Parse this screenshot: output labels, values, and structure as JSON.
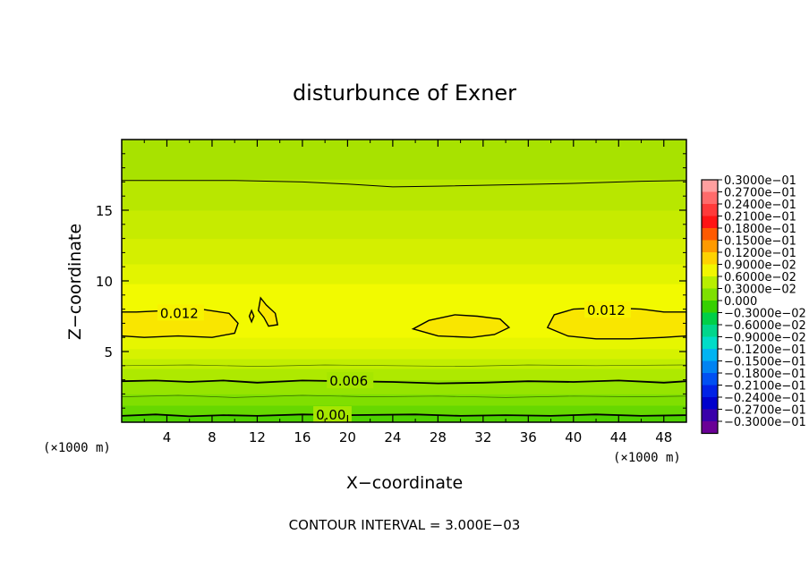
{
  "chart_data": {
    "type": "heatmap",
    "title": "disturbunce of Exner",
    "xlabel": "X−coordinate",
    "ylabel": "Z−coordinate",
    "x_unit": "(×1000 m)",
    "y_unit": "(×1000 m)",
    "xlim": [
      0,
      50
    ],
    "ylim": [
      0,
      20
    ],
    "x_ticks": [
      4,
      8,
      12,
      16,
      20,
      24,
      28,
      32,
      36,
      40,
      44,
      48
    ],
    "y_ticks": [
      5,
      10,
      15
    ],
    "footer": "CONTOUR INTERVAL = 3.000E−03",
    "contour_labels": [
      {
        "text": "0.012",
        "x": 3.4,
        "z": 7.7
      },
      {
        "text": "0.012",
        "x": 41.2,
        "z": 7.9
      },
      {
        "text": "0.006",
        "x": 18.4,
        "z": 2.9
      },
      {
        "text": "0.00",
        "x": 17.2,
        "z": 0.5
      }
    ],
    "colorbar": {
      "labels": [
        "0.3000e−01",
        "0.2700e−01",
        "0.2400e−01",
        "0.2100e−01",
        "0.1800e−01",
        "0.1500e−01",
        "0.1200e−01",
        "0.9000e−02",
        "0.6000e−02",
        "0.3000e−02",
        "0.000",
        "−0.3000e−02",
        "−0.6000e−02",
        "−0.9000e−02",
        "−0.1200e−01",
        "−0.1500e−01",
        "−0.1800e−01",
        "−0.2100e−01",
        "−0.2400e−01",
        "−0.2700e−01",
        "−0.3000e−01"
      ],
      "colors": [
        "#ff9f9f",
        "#ff6b6b",
        "#ff3a3a",
        "#ff1414",
        "#ff5a00",
        "#ff9a00",
        "#ffd200",
        "#f2f600",
        "#b8ee00",
        "#7ee000",
        "#36d000",
        "#00cf48",
        "#00d68c",
        "#00dcc8",
        "#00b4f2",
        "#0083f2",
        "#0050f2",
        "#0022e6",
        "#0000cc",
        "#3a00aa",
        "#6a0096"
      ]
    },
    "field_bands": [
      {
        "z0": 0.0,
        "z1": 0.5,
        "value": 0.0,
        "color": "#4cd200"
      },
      {
        "z0": 0.5,
        "z1": 1.2,
        "value": 0.002,
        "color": "#66d800"
      },
      {
        "z0": 1.2,
        "z1": 2.0,
        "value": 0.004,
        "color": "#80df00"
      },
      {
        "z0": 2.0,
        "z1": 3.0,
        "value": 0.005,
        "color": "#96e400"
      },
      {
        "z0": 3.0,
        "z1": 3.8,
        "value": 0.007,
        "color": "#aee900"
      },
      {
        "z0": 3.8,
        "z1": 4.5,
        "value": 0.008,
        "color": "#c2ee00"
      },
      {
        "z0": 4.5,
        "z1": 5.2,
        "value": 0.009,
        "color": "#d6f200"
      },
      {
        "z0": 5.2,
        "z1": 6.0,
        "value": 0.01,
        "color": "#e6f600"
      },
      {
        "z0": 6.0,
        "z1": 9.8,
        "value": 0.011,
        "color": "#f2fa00"
      },
      {
        "z0": 9.8,
        "z1": 11.2,
        "value": 0.01,
        "color": "#e2f400"
      },
      {
        "z0": 11.2,
        "z1": 13.0,
        "value": 0.009,
        "color": "#d4ef00"
      },
      {
        "z0": 13.0,
        "z1": 15.0,
        "value": 0.008,
        "color": "#c6eb00"
      },
      {
        "z0": 15.0,
        "z1": 17.2,
        "value": 0.007,
        "color": "#b8e700"
      },
      {
        "z0": 17.2,
        "z1": 20.0,
        "value": 0.006,
        "color": "#a8e200"
      }
    ],
    "max_regions": [
      {
        "points": [
          [
            0,
            6.1
          ],
          [
            2,
            6.0
          ],
          [
            5,
            6.1
          ],
          [
            8,
            6.0
          ],
          [
            10,
            6.3
          ],
          [
            10.3,
            7.0
          ],
          [
            9.5,
            7.7
          ],
          [
            7,
            8.0
          ],
          [
            4,
            7.9
          ],
          [
            1.3,
            7.8
          ],
          [
            0,
            7.8
          ]
        ],
        "color": "#f9e600",
        "value": 0.012
      },
      {
        "points": [
          [
            25.8,
            6.6
          ],
          [
            28,
            6.1
          ],
          [
            31,
            6.0
          ],
          [
            33,
            6.2
          ],
          [
            34.3,
            6.7
          ],
          [
            33.5,
            7.3
          ],
          [
            31.5,
            7.5
          ],
          [
            29.5,
            7.6
          ],
          [
            27.2,
            7.2
          ]
        ],
        "color": "#f9e600",
        "value": 0.012
      },
      {
        "points": [
          [
            50,
            6.1
          ],
          [
            48,
            6.0
          ],
          [
            45,
            5.9
          ],
          [
            42,
            5.9
          ],
          [
            39.5,
            6.1
          ],
          [
            37.7,
            6.7
          ],
          [
            38.3,
            7.6
          ],
          [
            40,
            8.0
          ],
          [
            43,
            8.1
          ],
          [
            46,
            8.0
          ],
          [
            48,
            7.8
          ],
          [
            50,
            7.8
          ]
        ],
        "color": "#f9e600",
        "value": 0.012
      },
      {
        "points": [
          [
            12.1,
            7.9
          ],
          [
            12.3,
            8.8
          ],
          [
            12.8,
            8.3
          ],
          [
            13.6,
            7.7
          ],
          [
            13.8,
            6.9
          ],
          [
            13.0,
            6.8
          ],
          [
            12.6,
            7.4
          ]
        ],
        "color": "#f9e600",
        "value": 0.012
      },
      {
        "points": [
          [
            11.3,
            7.5
          ],
          [
            11.5,
            7.9
          ],
          [
            11.7,
            7.5
          ],
          [
            11.5,
            7.1
          ]
        ],
        "color": "#f9e600",
        "value": 0.012
      }
    ],
    "contour_lines": [
      {
        "value": 0.0,
        "points": [
          [
            0,
            0.45
          ],
          [
            3,
            0.55
          ],
          [
            6,
            0.42
          ],
          [
            9,
            0.5
          ],
          [
            12,
            0.45
          ],
          [
            16,
            0.55
          ],
          [
            20,
            0.5
          ],
          [
            26,
            0.55
          ],
          [
            30,
            0.45
          ],
          [
            34,
            0.5
          ],
          [
            38,
            0.45
          ],
          [
            42,
            0.55
          ],
          [
            46,
            0.45
          ],
          [
            50,
            0.5
          ]
        ]
      },
      {
        "value": 0.006,
        "points": [
          [
            0,
            2.9
          ],
          [
            3,
            2.95
          ],
          [
            6,
            2.85
          ],
          [
            9,
            2.95
          ],
          [
            12,
            2.8
          ],
          [
            16,
            2.95
          ],
          [
            20,
            2.9
          ],
          [
            24,
            2.85
          ],
          [
            28,
            2.75
          ],
          [
            32,
            2.8
          ],
          [
            36,
            2.9
          ],
          [
            40,
            2.85
          ],
          [
            44,
            2.95
          ],
          [
            48,
            2.8
          ],
          [
            50,
            2.9
          ]
        ]
      },
      {
        "value": 0.009,
        "points": [
          [
            0,
            17.1
          ],
          [
            10,
            17.1
          ],
          [
            16,
            17.0
          ],
          [
            20,
            16.85
          ],
          [
            24,
            16.65
          ],
          [
            28,
            16.7
          ],
          [
            34,
            16.8
          ],
          [
            40,
            16.9
          ],
          [
            46,
            17.05
          ],
          [
            50,
            17.1
          ]
        ]
      }
    ],
    "thin_lines": [
      {
        "points": [
          [
            0,
            1.8
          ],
          [
            5,
            1.9
          ],
          [
            10,
            1.75
          ],
          [
            16,
            1.9
          ],
          [
            22,
            1.8
          ],
          [
            28,
            1.85
          ],
          [
            34,
            1.75
          ],
          [
            40,
            1.85
          ],
          [
            46,
            1.8
          ],
          [
            50,
            1.85
          ]
        ]
      },
      {
        "points": [
          [
            0,
            4.0
          ],
          [
            6,
            4.05
          ],
          [
            12,
            3.95
          ],
          [
            18,
            4.05
          ],
          [
            24,
            4.0
          ],
          [
            30,
            3.95
          ],
          [
            36,
            4.05
          ],
          [
            42,
            4.0
          ],
          [
            50,
            4.05
          ]
        ]
      }
    ]
  }
}
